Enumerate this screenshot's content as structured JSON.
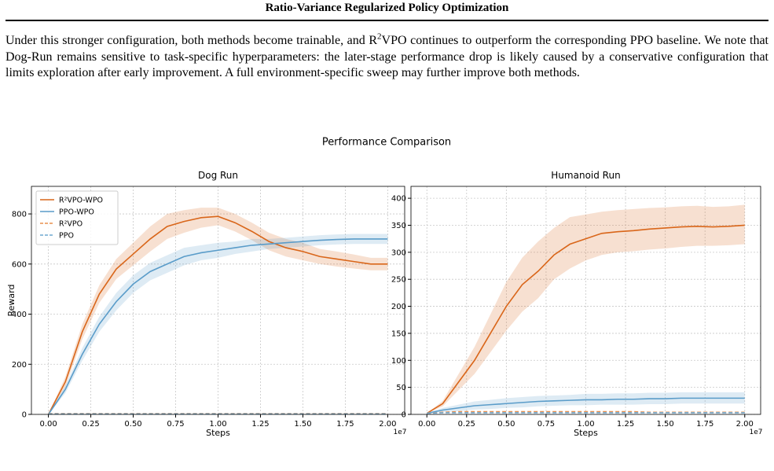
{
  "document": {
    "header": "Ratio-Variance Regularized Policy Optimization",
    "paragraph": [
      "Under this stronger configuration, both methods become trainable, and R",
      "2",
      "VPO continues to outperform the corresponding PPO baseline. We note that Dog-Run remains sensitive to task-specific hyperparameters: the later-stage performance drop is likely caused by a conservative configuration that limits exploration after early improvement. A full environment-specific sweep may further improve both methods."
    ]
  },
  "figure": {
    "title": "Performance Comparison"
  },
  "chart_data": [
    {
      "type": "line",
      "title": "Dog Run",
      "xlabel": "Steps",
      "ylabel": "Reward",
      "x_offset_label": "1e7",
      "grid": true,
      "legend": "upper left",
      "xlim": [
        -0.1,
        2.1
      ],
      "ylim": [
        0,
        910
      ],
      "xticks": [
        {
          "value": 0,
          "label": "0.00"
        },
        0.25,
        {
          "value": 0.5,
          "label": "0.50"
        },
        0.75,
        {
          "value": 1,
          "label": "1.00"
        },
        1.25,
        {
          "value": 1.5,
          "label": "1.50"
        },
        1.75,
        {
          "value": 2,
          "label": "2.00"
        }
      ],
      "yticks": [
        0,
        200,
        400,
        600,
        800
      ],
      "x": [
        0,
        0.1,
        0.2,
        0.3,
        0.4,
        0.5,
        0.6,
        0.7,
        0.8,
        0.9,
        1.0,
        1.1,
        1.2,
        1.3,
        1.4,
        1.5,
        1.6,
        1.7,
        1.8,
        1.9,
        2.0
      ],
      "series": [
        {
          "name": "R²VPO-WPO",
          "color": "#d9661a",
          "linestyle": "solid",
          "values": [
            0,
            130,
            330,
            480,
            580,
            640,
            700,
            750,
            770,
            785,
            790,
            765,
            730,
            690,
            665,
            650,
            630,
            620,
            610,
            600,
            600
          ],
          "lower": [
            0,
            110,
            300,
            445,
            540,
            595,
            650,
            700,
            725,
            745,
            755,
            730,
            695,
            655,
            630,
            615,
            600,
            590,
            582,
            575,
            575
          ],
          "upper": [
            0,
            150,
            360,
            515,
            620,
            685,
            750,
            800,
            815,
            825,
            825,
            800,
            765,
            725,
            700,
            685,
            660,
            650,
            638,
            625,
            625
          ]
        },
        {
          "name": "PPO-WPO",
          "color": "#5a9cc9",
          "linestyle": "solid",
          "values": [
            0,
            100,
            240,
            360,
            450,
            520,
            570,
            600,
            630,
            645,
            655,
            665,
            675,
            680,
            685,
            690,
            695,
            698,
            700,
            700,
            700
          ],
          "lower": [
            0,
            85,
            215,
            330,
            415,
            485,
            535,
            565,
            595,
            615,
            625,
            640,
            650,
            660,
            665,
            670,
            675,
            678,
            680,
            680,
            680
          ],
          "upper": [
            0,
            115,
            265,
            390,
            485,
            555,
            605,
            635,
            665,
            675,
            685,
            690,
            700,
            700,
            705,
            710,
            715,
            718,
            720,
            720,
            720
          ]
        },
        {
          "name": "R²VPO",
          "color": "#e8904f",
          "linestyle": "dashed",
          "values": [
            3,
            3,
            3,
            3,
            3,
            3,
            3,
            3,
            3,
            3,
            3,
            3,
            3,
            3,
            3,
            3,
            3,
            3,
            3,
            3,
            3
          ]
        },
        {
          "name": "PPO",
          "color": "#6fa8d0",
          "linestyle": "dashed",
          "values": [
            2,
            2,
            2,
            2,
            2,
            2,
            2,
            2,
            2,
            2,
            2,
            2,
            2,
            2,
            2,
            2,
            2,
            2,
            2,
            2,
            2
          ]
        }
      ]
    },
    {
      "type": "line",
      "title": "Humanoid Run",
      "xlabel": "Steps",
      "x_offset_label": "1e7",
      "grid": true,
      "xlim": [
        -0.1,
        2.1
      ],
      "ylim": [
        0,
        422
      ],
      "xticks": [
        {
          "value": 0,
          "label": "0.00"
        },
        0.25,
        {
          "value": 0.5,
          "label": "0.50"
        },
        0.75,
        {
          "value": 1,
          "label": "1.00"
        },
        1.25,
        {
          "value": 1.5,
          "label": "1.50"
        },
        1.75,
        {
          "value": 2,
          "label": "2.00"
        }
      ],
      "yticks": [
        0,
        50,
        100,
        150,
        200,
        250,
        300,
        350,
        400
      ],
      "x": [
        0,
        0.1,
        0.2,
        0.3,
        0.4,
        0.5,
        0.6,
        0.7,
        0.8,
        0.9,
        1.0,
        1.1,
        1.2,
        1.3,
        1.4,
        1.5,
        1.6,
        1.7,
        1.8,
        1.9,
        2.0
      ],
      "series": [
        {
          "color": "#d9661a",
          "linestyle": "solid",
          "values": [
            2,
            20,
            60,
            100,
            150,
            200,
            240,
            265,
            295,
            315,
            325,
            335,
            338,
            340,
            343,
            345,
            347,
            348,
            347,
            348,
            350
          ],
          "lower": [
            2,
            15,
            45,
            75,
            115,
            155,
            190,
            215,
            250,
            270,
            285,
            295,
            300,
            302,
            305,
            307,
            310,
            312,
            312,
            313,
            315
          ],
          "upper": [
            2,
            25,
            75,
            125,
            185,
            245,
            290,
            320,
            345,
            365,
            370,
            375,
            378,
            380,
            382,
            383,
            385,
            386,
            384,
            385,
            388
          ]
        },
        {
          "color": "#5a9cc9",
          "linestyle": "solid",
          "values": [
            2,
            8,
            12,
            16,
            18,
            20,
            22,
            24,
            25,
            26,
            27,
            27,
            28,
            28,
            29,
            29,
            30,
            30,
            30,
            30,
            30
          ],
          "lower": [
            1,
            4,
            6,
            9,
            10,
            12,
            13,
            15,
            16,
            17,
            17,
            18,
            18,
            18,
            19,
            19,
            20,
            20,
            20,
            20,
            20
          ],
          "upper": [
            3,
            12,
            18,
            24,
            27,
            30,
            32,
            34,
            35,
            36,
            38,
            38,
            39,
            39,
            40,
            40,
            41,
            41,
            41,
            41,
            41
          ]
        },
        {
          "color": "#e8904f",
          "linestyle": "dashed",
          "values": [
            2,
            4,
            5,
            5,
            5,
            5,
            5,
            5,
            5,
            5,
            5,
            5,
            5,
            5,
            4,
            4,
            4,
            4,
            4,
            4,
            4
          ]
        },
        {
          "color": "#6fa8d0",
          "linestyle": "dashed",
          "values": [
            2,
            3,
            3,
            3,
            3,
            3,
            3,
            3,
            3,
            3,
            3,
            3,
            3,
            3,
            3,
            3,
            3,
            3,
            3,
            3,
            3
          ]
        }
      ]
    }
  ]
}
